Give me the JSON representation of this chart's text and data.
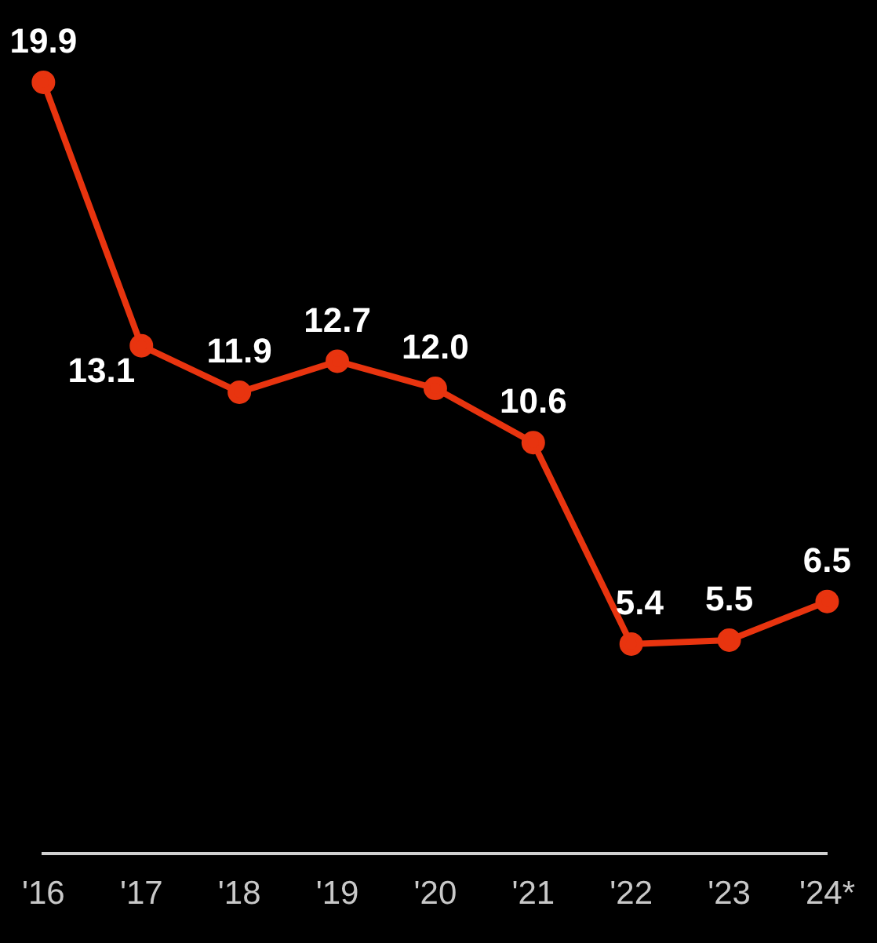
{
  "chart_data": {
    "type": "line",
    "categories": [
      "'16",
      "'17",
      "'18",
      "'19",
      "'20",
      "'21",
      "'22",
      "'23",
      "'24*"
    ],
    "series": [
      {
        "color": "#e8340f",
        "values": [
          19.9,
          13.1,
          11.9,
          12.7,
          12.0,
          10.6,
          5.4,
          5.5,
          6.5
        ],
        "value_labels": [
          "19.9",
          "13.1",
          "11.9",
          "12.7",
          "12.0",
          "10.6",
          "5.4",
          "5.5",
          "6.5"
        ]
      }
    ],
    "tick_labels": "x",
    "grid": false,
    "legend": false,
    "marker": "circle",
    "line_style": "solid"
  }
}
